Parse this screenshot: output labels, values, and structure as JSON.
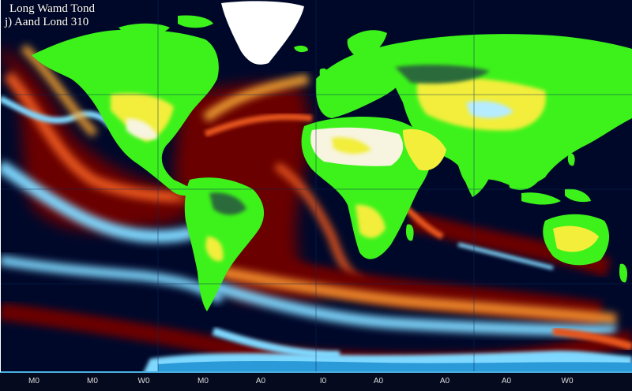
{
  "title": {
    "line1": "Long Wamd Tond",
    "line2": "j) Aand Lond 310"
  },
  "x_tick_labels": [
    "M0",
    "M0",
    "W0",
    "M0",
    "A0",
    "I0",
    "A0",
    "A0",
    "A0",
    "W0"
  ],
  "colors": {
    "ocean_background": "#00082a",
    "land_green": "#3df21b",
    "land_yellow": "#f2ee3a",
    "land_white": "#f7f4df",
    "current_dark_red": "#6a0500",
    "current_orange": "#e6541a",
    "current_cyan": "#7fd8ff",
    "ice_white": "#ffffff"
  }
}
